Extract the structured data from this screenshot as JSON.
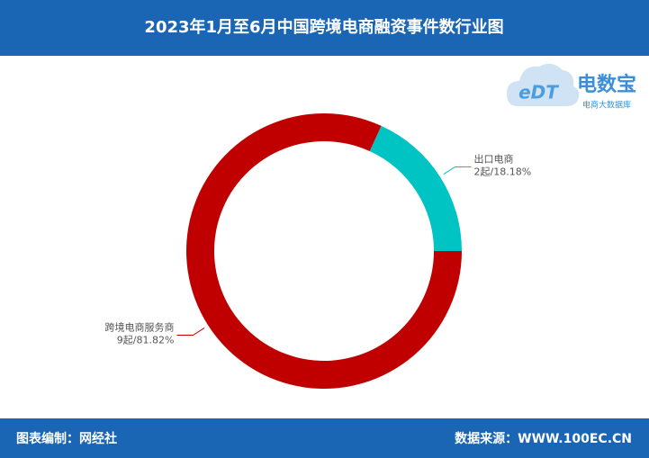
{
  "chart_data": {
    "type": "donut",
    "title": "2023年1月至6月中国跨境电商融资事件数行业图",
    "categories": [
      "出口电商",
      "跨境电商服务商"
    ],
    "values": [
      2,
      9
    ],
    "value_labels": [
      "2起/18.18%",
      "9起/81.82%"
    ],
    "colors": [
      "#00c3c3",
      "#c00000"
    ]
  },
  "logo": {
    "mark": "eDT",
    "name": "电数宝",
    "tagline": "电商大数据库"
  },
  "footer": {
    "left": "图表编制：网经社",
    "right": "数据来源：WWW.100EC.CN"
  }
}
